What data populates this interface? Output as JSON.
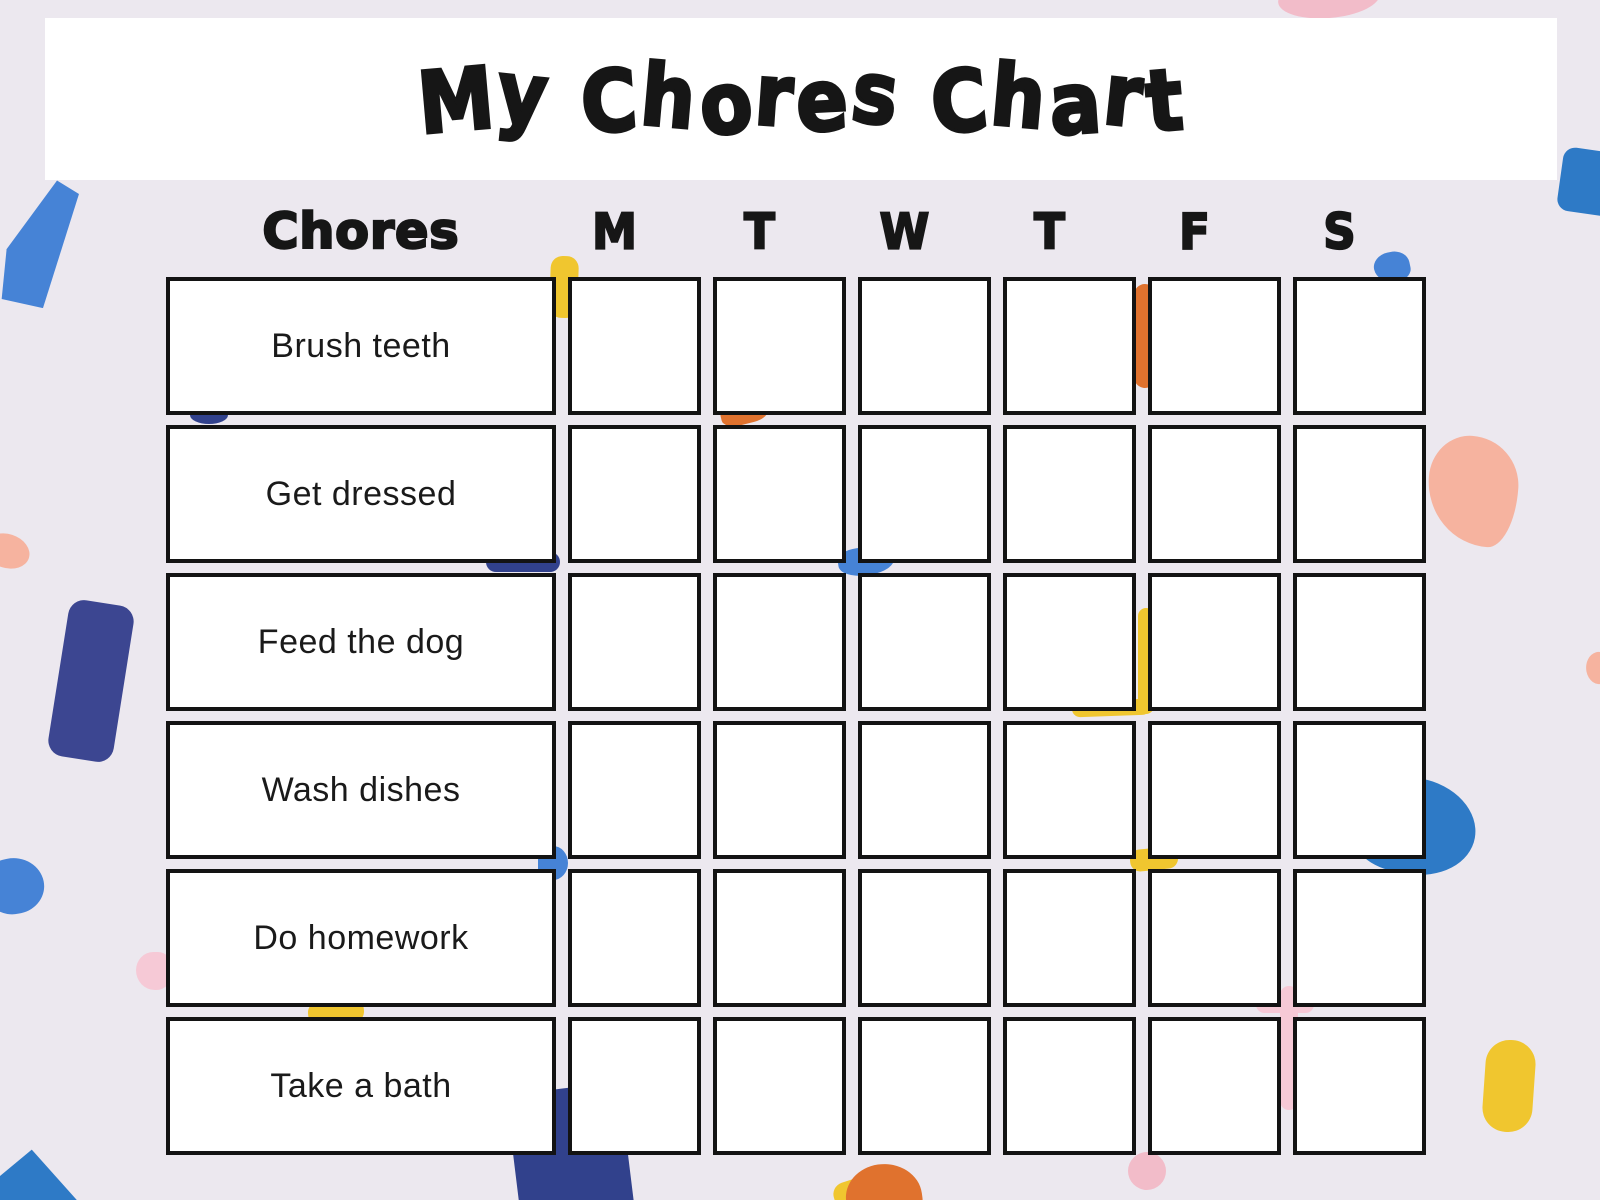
{
  "title": "My Chores Chart",
  "table": {
    "chores_header": "Chores",
    "days": [
      "M",
      "T",
      "W",
      "T",
      "F",
      "S"
    ],
    "chores": [
      "Brush teeth",
      "Get dressed",
      "Feed the dog",
      "Wash dishes",
      "Do homework",
      "Take a bath"
    ],
    "checkbox_states": [
      [
        false,
        false,
        false,
        false,
        false,
        false
      ],
      [
        false,
        false,
        false,
        false,
        false,
        false
      ],
      [
        false,
        false,
        false,
        false,
        false,
        false
      ],
      [
        false,
        false,
        false,
        false,
        false,
        false
      ],
      [
        false,
        false,
        false,
        false,
        false,
        false
      ],
      [
        false,
        false,
        false,
        false,
        false,
        false
      ]
    ]
  },
  "colors": {
    "background": "#ece8ef",
    "banner": "#ffffff",
    "ink": "#161616",
    "blue": "#4683d6",
    "blue_deep": "#2e7ac6",
    "navy": "#3c4691",
    "navy_dark": "#31418c",
    "orange": "#e0722e",
    "yellow": "#f0c62f",
    "pink_light": "#f6c9d6",
    "pink": "#f2bcc9",
    "salmon": "#f6b39f"
  }
}
